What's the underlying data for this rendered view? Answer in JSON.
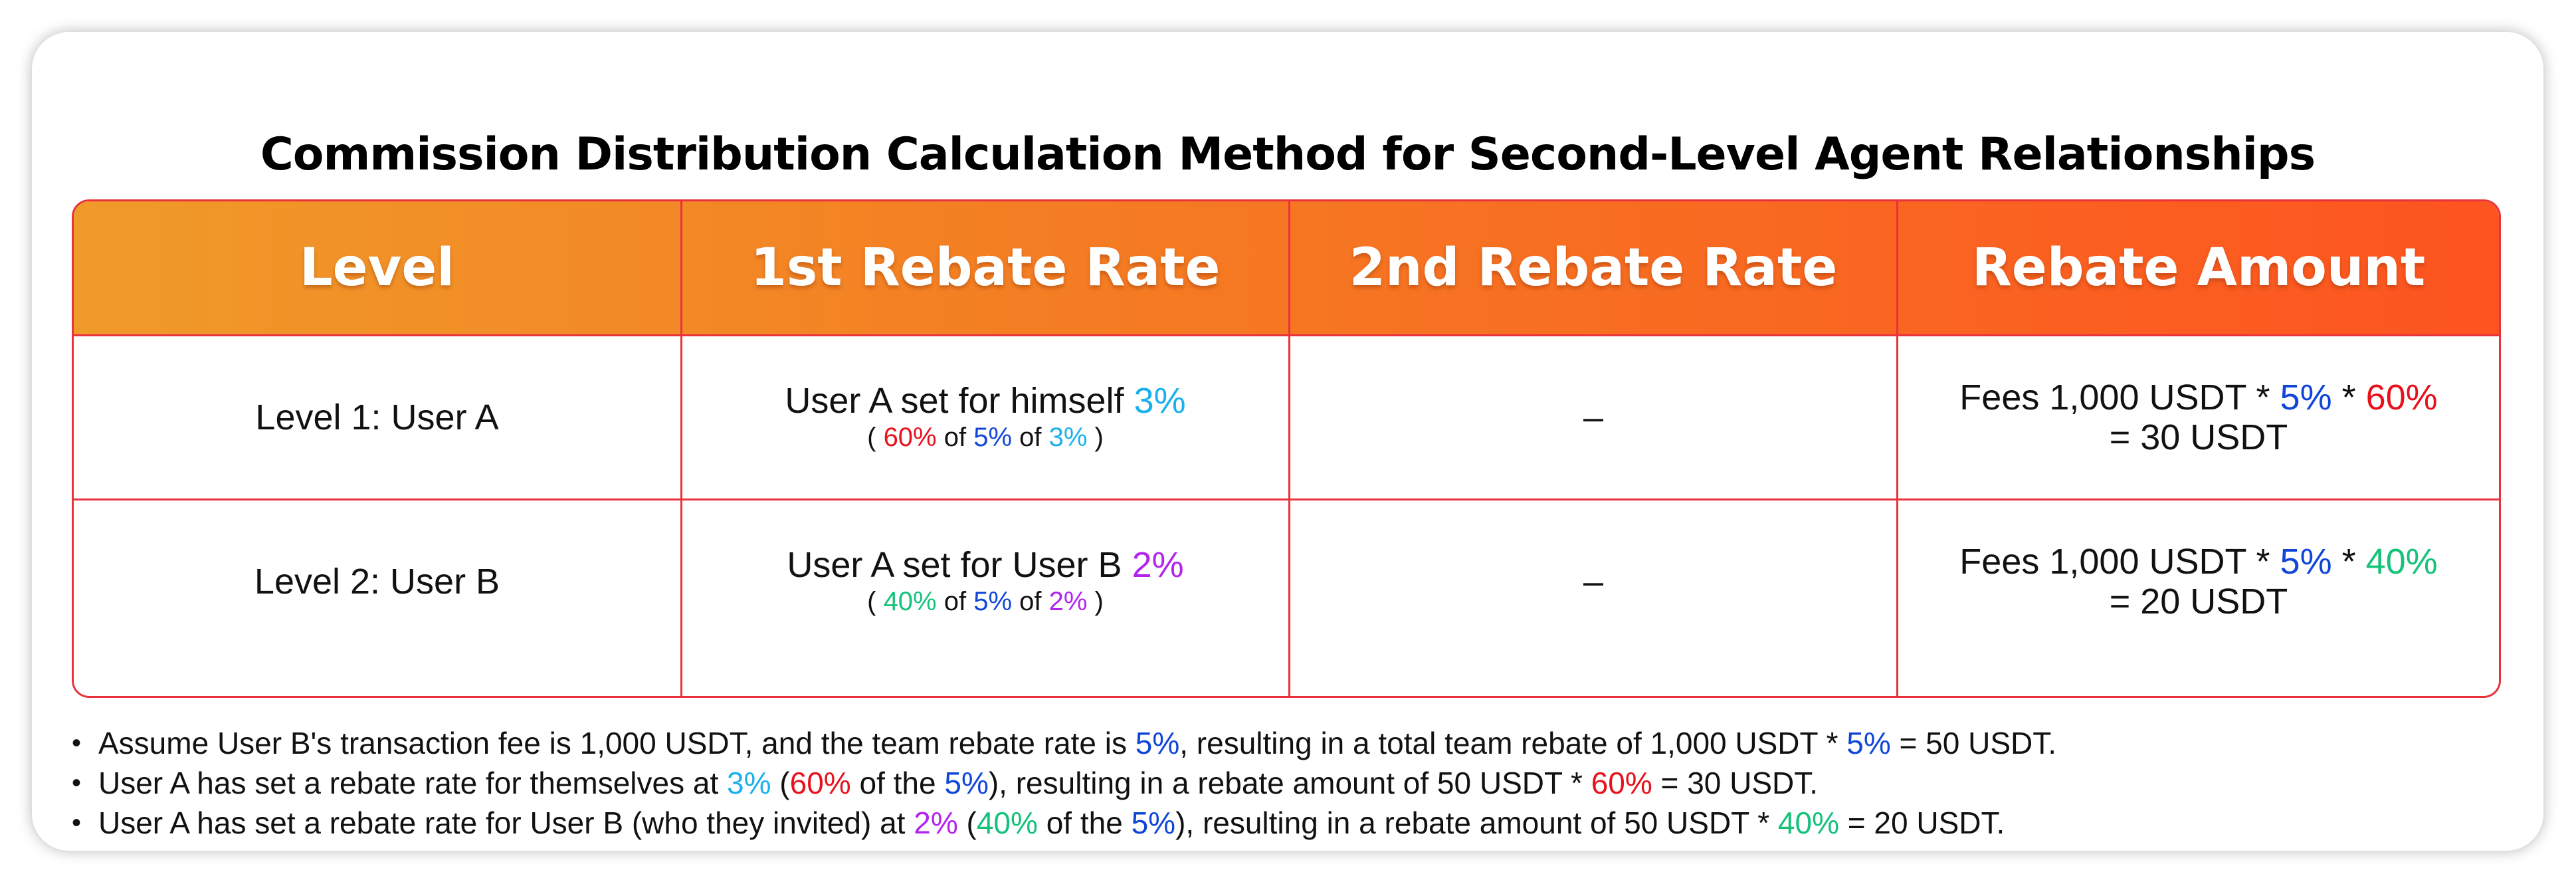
{
  "title": "Commission Distribution Calculation Method for Second-Level Agent Relationships",
  "colors": {
    "header_gradient_start": "#f09a2a",
    "header_gradient_end": "#fd5420",
    "border": "#e8323c",
    "cyan": "#1ab0ec",
    "red": "#e8101b",
    "blue": "#1046d8",
    "purple": "#b323f0",
    "green": "#14c27a"
  },
  "table": {
    "headers": [
      "Level",
      "1st Rebate Rate",
      "2nd Rebate Rate",
      "Rebate Amount"
    ],
    "rows": [
      {
        "level": "Level 1:  User A",
        "first_rate_text": "User A set for himself ",
        "first_rate_value": "3%",
        "detail": {
          "open": "( ",
          "share": "60%",
          "of1": " of ",
          "team_rate": "5%",
          "of2": " of ",
          "rate": "3%",
          "close": " )"
        },
        "second_rate": "–",
        "amount": {
          "prefix": "Fees 1,000 USDT * ",
          "team_rate": "5%",
          "mult": " * ",
          "share": "60%",
          "result": "= 30 USDT"
        }
      },
      {
        "level": "Level 2:  User B",
        "first_rate_text": "User A set for User B ",
        "first_rate_value": "2%",
        "detail": {
          "open": "( ",
          "share": "40%",
          "of1": " of ",
          "team_rate": "5%",
          "of2": " of ",
          "rate": "2%",
          "close": " )"
        },
        "second_rate": "–",
        "amount": {
          "prefix": "Fees 1,000 USDT * ",
          "team_rate": "5%",
          "mult": " * ",
          "share": "40%",
          "result": "= 20 USDT"
        }
      }
    ]
  },
  "notes": [
    {
      "a": "Assume User B's transaction fee is 1,000 USDT, and the team rebate rate is ",
      "b": "5%",
      "c": ", resulting in a total team rebate of 1,000 USDT * ",
      "d": "5%",
      "e": " = 50 USDT."
    },
    {
      "a": "User A has set a rebate rate for themselves at ",
      "b": "3%",
      "c": " (",
      "d": "60%",
      "e": " of the ",
      "f": "5%",
      "g": "), resulting in a rebate amount of 50 USDT * ",
      "h": "60%",
      "i": " = 30 USDT."
    },
    {
      "a": "User A has set a rebate rate for User B (who they invited) at ",
      "b": "2%",
      "c": " (",
      "d": "40%",
      "e": " of the ",
      "f": "5%",
      "g": "), resulting in a rebate amount of 50 USDT * ",
      "h": "40%",
      "i": " = 20 USDT."
    }
  ]
}
